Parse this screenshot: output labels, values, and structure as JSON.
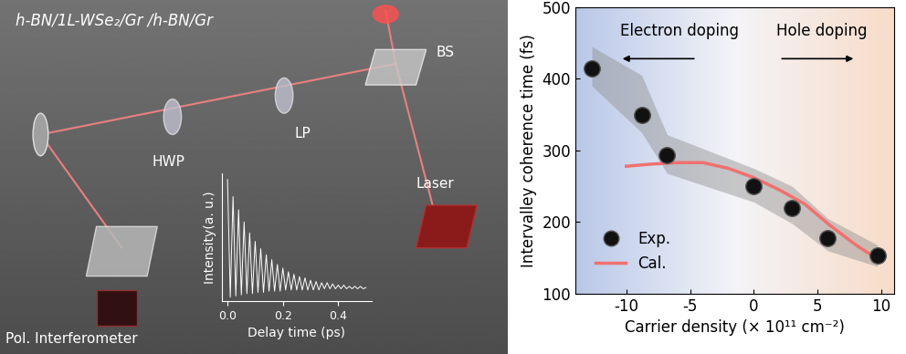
{
  "diagram": {
    "sample": "h-BN/1L-WSe₂/Gr /h-BN/Gr",
    "labels": {
      "beam_splitter": "BS",
      "polarizer": "LP",
      "half_wave_plate": "HWP",
      "laser": "Laser",
      "detector": "Pol. Interferometer"
    }
  },
  "chart_data": [
    {
      "type": "line",
      "xlabel": "Delay time (ps)",
      "ylabel": "Intensity(a. u.)",
      "x": [
        0.0,
        0.01,
        0.02,
        0.03,
        0.04,
        0.05,
        0.06,
        0.07,
        0.08,
        0.09,
        0.1,
        0.11,
        0.12,
        0.13,
        0.14,
        0.15,
        0.16,
        0.17,
        0.18,
        0.19,
        0.2,
        0.21,
        0.22,
        0.23,
        0.24,
        0.25,
        0.26,
        0.27,
        0.28,
        0.29,
        0.3,
        0.31,
        0.32,
        0.33,
        0.34,
        0.35,
        0.36,
        0.37,
        0.38,
        0.39,
        0.4,
        0.41,
        0.42,
        0.43,
        0.44,
        0.45,
        0.46,
        0.47,
        0.48,
        0.49,
        0.5
      ],
      "values": [
        1.0,
        0.03,
        0.86,
        0.04,
        0.75,
        0.05,
        0.65,
        0.06,
        0.56,
        0.06,
        0.49,
        0.07,
        0.43,
        0.07,
        0.38,
        0.08,
        0.34,
        0.08,
        0.3,
        0.08,
        0.27,
        0.09,
        0.24,
        0.09,
        0.22,
        0.09,
        0.2,
        0.09,
        0.19,
        0.09,
        0.17,
        0.09,
        0.16,
        0.09,
        0.15,
        0.1,
        0.15,
        0.1,
        0.14,
        0.1,
        0.13,
        0.1,
        0.13,
        0.1,
        0.12,
        0.1,
        0.12,
        0.1,
        0.12,
        0.1,
        0.11
      ],
      "xlim": [
        -0.02,
        0.52
      ],
      "xticks": [
        {
          "value": 0,
          "label": "0.0"
        },
        {
          "value": 0.2,
          "label": "0.2"
        },
        {
          "value": 0.4,
          "label": "0.4"
        }
      ],
      "ylim": [
        0,
        1.05
      ],
      "tick_labels": "x",
      "color": "#ffffff"
    },
    {
      "type": "scatter",
      "xlabel": "Carrier density (× 10¹¹ cm⁻²)",
      "ylabel": "Intervalley coherence time (fs)",
      "xlim": [
        -14,
        11
      ],
      "xticks": [
        -10,
        -5,
        0,
        5,
        10
      ],
      "ylim": [
        100,
        500
      ],
      "yticks": [
        100,
        200,
        300,
        400,
        500
      ],
      "legend": "lower left",
      "annotations": [
        "Electron doping",
        "Hole doping"
      ],
      "series": [
        {
          "name": "Exp.",
          "type": "scatter",
          "color": "#111111",
          "marker": "o",
          "x": [
            -12.7,
            -8.8,
            -6.8,
            0,
            3,
            5.8,
            9.7
          ],
          "values": [
            415,
            350,
            293,
            250,
            220,
            178,
            153
          ],
          "band_low": [
            390,
            325,
            268,
            228,
            198,
            160,
            138
          ],
          "band_high": [
            445,
            405,
            322,
            275,
            250,
            205,
            168
          ]
        },
        {
          "name": "Cal.",
          "type": "line",
          "color": "#f07070",
          "line_style": "solid",
          "x": [
            -10,
            -8,
            -6,
            -4,
            -2,
            0,
            2,
            4,
            6,
            8,
            10
          ],
          "values": [
            278,
            281,
            283,
            283,
            275,
            262,
            245,
            225,
            195,
            168,
            145
          ]
        }
      ]
    }
  ]
}
